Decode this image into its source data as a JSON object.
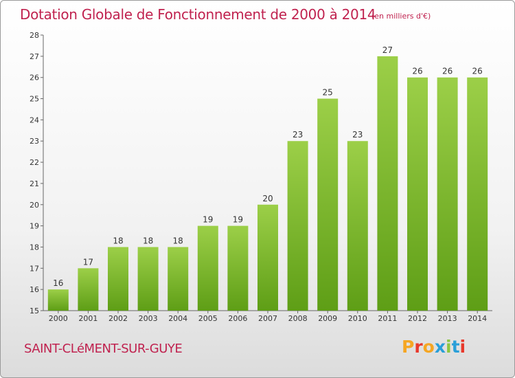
{
  "header": {
    "title": "Dotation Globale de Fonctionnement de 2000 à 2014",
    "unit": "(en milliers d'€)"
  },
  "footer": {
    "commune": "SAINT-CLéMENT-SUR-GUYE",
    "logo_text": "Proxiti",
    "logo_colors": [
      "#f5a623",
      "#e8382b",
      "#f5a623",
      "#2a9fd8",
      "#8dc63f",
      "#2a9fd8",
      "#e8382b"
    ]
  },
  "chart_data": {
    "type": "bar",
    "categories": [
      "2000",
      "2001",
      "2002",
      "2003",
      "2004",
      "2005",
      "2006",
      "2007",
      "2008",
      "2009",
      "2010",
      "2011",
      "2012",
      "2013",
      "2014"
    ],
    "values": [
      16,
      17,
      18,
      18,
      18,
      19,
      19,
      20,
      23,
      25,
      23,
      27,
      26,
      26,
      26
    ],
    "ylim": [
      15,
      28
    ],
    "yticks": [
      15,
      16,
      17,
      18,
      19,
      20,
      21,
      22,
      23,
      24,
      25,
      26,
      27,
      28
    ],
    "grid": false,
    "bar_color_top": "#9ccf48",
    "bar_color_bottom": "#5e9e16"
  }
}
